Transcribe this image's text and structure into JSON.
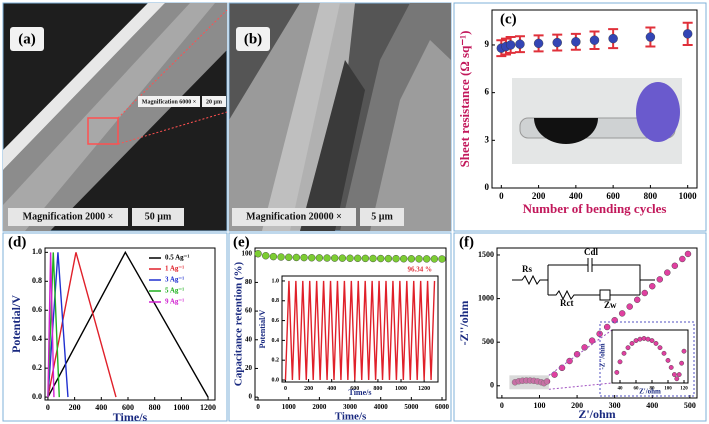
{
  "images": [
    {
      "label": "(a)",
      "captions": [
        "Magnification 2000 ×",
        "50 µm"
      ],
      "inset_captions": [
        "Magnification 6000 ×",
        "20 µm"
      ]
    },
    {
      "label": "(b)",
      "captions": [
        "Magnification 20000 ×",
        "5 µm"
      ]
    }
  ],
  "chart_data": [
    {
      "type": "scatter",
      "label": "(c)",
      "xlabel": "Number of bending cycles",
      "ylabel": "Sheet resistance (Ω sq⁻¹)",
      "xlim": [
        -50,
        1050
      ],
      "ylim": [
        0,
        11.2
      ],
      "xticks": [
        0,
        200,
        400,
        600,
        800,
        1000
      ],
      "yticks": [
        0,
        3,
        6,
        9
      ],
      "series": [
        {
          "color": "#3345b5",
          "error_color": "#e0303a",
          "x": [
            0,
            25,
            50,
            100,
            200,
            300,
            400,
            500,
            600,
            800,
            1000
          ],
          "values": [
            8.8,
            8.9,
            9.0,
            9.05,
            9.1,
            9.15,
            9.2,
            9.3,
            9.4,
            9.5,
            9.7
          ],
          "errors": [
            0.5,
            0.5,
            0.5,
            0.5,
            0.5,
            0.5,
            0.5,
            0.55,
            0.6,
            0.6,
            0.7
          ]
        }
      ]
    },
    {
      "type": "line",
      "label": "(d)",
      "xlabel": "Time/s",
      "ylabel": "Potential/V",
      "legend": "upper right",
      "xlim": [
        -22,
        1252
      ],
      "ylim": [
        -0.02,
        1.03
      ],
      "xticks": [
        0,
        200,
        400,
        600,
        800,
        1000,
        1200
      ],
      "yticks": [
        {
          "value": 0,
          "label": "0.0"
        },
        0.2,
        0.4,
        0.6,
        0.8,
        {
          "value": 1,
          "label": "1.0"
        }
      ],
      "series": [
        {
          "name": "0.5 Ag⁻¹",
          "color": "#000000",
          "x": [
            0,
            580,
            1200
          ],
          "values": [
            0,
            1,
            0
          ]
        },
        {
          "name": "1 Ag⁻¹",
          "color": "#e0202a",
          "x": [
            0,
            210,
            510
          ],
          "values": [
            0,
            1,
            0
          ]
        },
        {
          "name": "3 Ag⁻¹",
          "color": "#2030d0",
          "x": [
            0,
            75,
            150
          ],
          "values": [
            0,
            1,
            0
          ]
        },
        {
          "name": "5 Ag⁻¹",
          "color": "#20b020",
          "x": [
            0,
            40,
            85
          ],
          "values": [
            0,
            1,
            0
          ]
        },
        {
          "name": "9 Ag⁻¹",
          "color": "#d020d0",
          "x": [
            0,
            20,
            45
          ],
          "values": [
            0,
            1,
            0
          ]
        }
      ]
    },
    {
      "type": "scatter",
      "label": "(e)",
      "xlabel": "Time/s",
      "ylabel": "Capacitance retention (%)",
      "annotation": "96.34 %",
      "xlim": [
        -100,
        6130
      ],
      "ylim": [
        -2,
        104
      ],
      "xticks": [
        0,
        1000,
        2000,
        3000,
        4000,
        5000,
        6000
      ],
      "yticks": [
        0,
        20,
        40,
        60,
        80,
        100
      ],
      "series": [
        {
          "color": "#7ccd32",
          "x": [
            0,
            250,
            500,
            750,
            1000,
            1250,
            1500,
            1750,
            2000,
            2250,
            2500,
            2750,
            3000,
            3250,
            3500,
            3750,
            4000,
            4250,
            4500,
            4750,
            5000,
            5250,
            5500,
            5750,
            6000
          ],
          "values": [
            100,
            98.6,
            98.0,
            97.7,
            97.5,
            97.4,
            97.3,
            97.2,
            97.1,
            97.0,
            96.95,
            96.9,
            96.85,
            96.8,
            96.75,
            96.7,
            96.65,
            96.6,
            96.55,
            96.5,
            96.47,
            96.44,
            96.41,
            96.38,
            96.34
          ]
        }
      ]
    },
    {
      "type": "line",
      "xlabel": "Time/s",
      "ylabel": "Potential/V",
      "xlim": [
        -30,
        1320
      ],
      "ylim": [
        -0.02,
        1.05
      ],
      "xticks": [
        0,
        200,
        400,
        600,
        800,
        1000,
        1200
      ],
      "yticks": [
        {
          "value": 0,
          "label": "0.0"
        },
        0.2,
        0.4,
        0.6,
        0.8,
        {
          "value": 1,
          "label": "1.0"
        }
      ],
      "series": [
        {
          "color": "#e0202a",
          "x": [
            0,
            30,
            60,
            90,
            120,
            150,
            180,
            210,
            240,
            270,
            300,
            330,
            360,
            390,
            420,
            450,
            480,
            510,
            540,
            570,
            600,
            630,
            660,
            690,
            720,
            750,
            780,
            810,
            840,
            870,
            900,
            930,
            960,
            990,
            1020,
            1050,
            1080,
            1110,
            1140,
            1170,
            1200,
            1230,
            1260,
            1290
          ],
          "values": [
            0,
            1,
            0,
            1,
            0,
            1,
            0,
            1,
            0,
            1,
            0,
            1,
            0,
            1,
            0,
            1,
            0,
            1,
            0,
            1,
            0,
            1,
            0,
            1,
            0,
            1,
            0,
            1,
            0,
            1,
            0,
            1,
            0,
            1,
            0,
            1,
            0,
            1,
            0,
            1,
            0,
            1,
            0,
            1
          ]
        }
      ]
    },
    {
      "type": "scatter",
      "label": "(f)",
      "xlabel": "Z'/ohm",
      "ylabel": "-Z''/ohm",
      "circuit": [
        "Rs",
        "Cdl",
        "Rct",
        "Zw"
      ],
      "xlim": [
        -13,
        519
      ],
      "ylim": [
        -140,
        1580
      ],
      "xticks": [
        0,
        100,
        200,
        300,
        400,
        500
      ],
      "yticks": [
        0,
        500,
        1000,
        1500
      ],
      "series": [
        {
          "color": "#e040a0",
          "x": [
            35,
            45,
            55,
            65,
            75,
            85,
            95,
            105,
            112,
            120,
            140,
            160,
            180,
            200,
            220,
            240,
            260,
            280,
            300,
            320,
            340,
            360,
            380,
            400,
            420,
            440,
            460,
            480,
            495
          ],
          "values": [
            40,
            52,
            58,
            60,
            60,
            57,
            50,
            40,
            30,
            50,
            128,
            206,
            284,
            362,
            440,
            518,
            596,
            674,
            752,
            830,
            908,
            986,
            1064,
            1142,
            1220,
            1298,
            1376,
            1454,
            1512
          ]
        }
      ]
    },
    {
      "type": "scatter",
      "xlabel": "Z'/ohm",
      "ylabel": "-Z''/ohm",
      "xlim": [
        30,
        125
      ],
      "ylim": [
        0,
        75
      ],
      "xticks": [
        40,
        60,
        80,
        100,
        120
      ],
      "series": [
        {
          "color": "#e040a0",
          "x": [
            36,
            40,
            45,
            50,
            55,
            60,
            65,
            70,
            75,
            80,
            85,
            90,
            95,
            100,
            104,
            108,
            111,
            114,
            117,
            120
          ],
          "values": [
            15,
            30,
            42,
            50,
            56,
            60,
            62,
            63,
            62,
            60,
            56,
            50,
            42,
            32,
            22,
            12,
            6,
            12,
            28,
            45
          ]
        }
      ]
    }
  ]
}
